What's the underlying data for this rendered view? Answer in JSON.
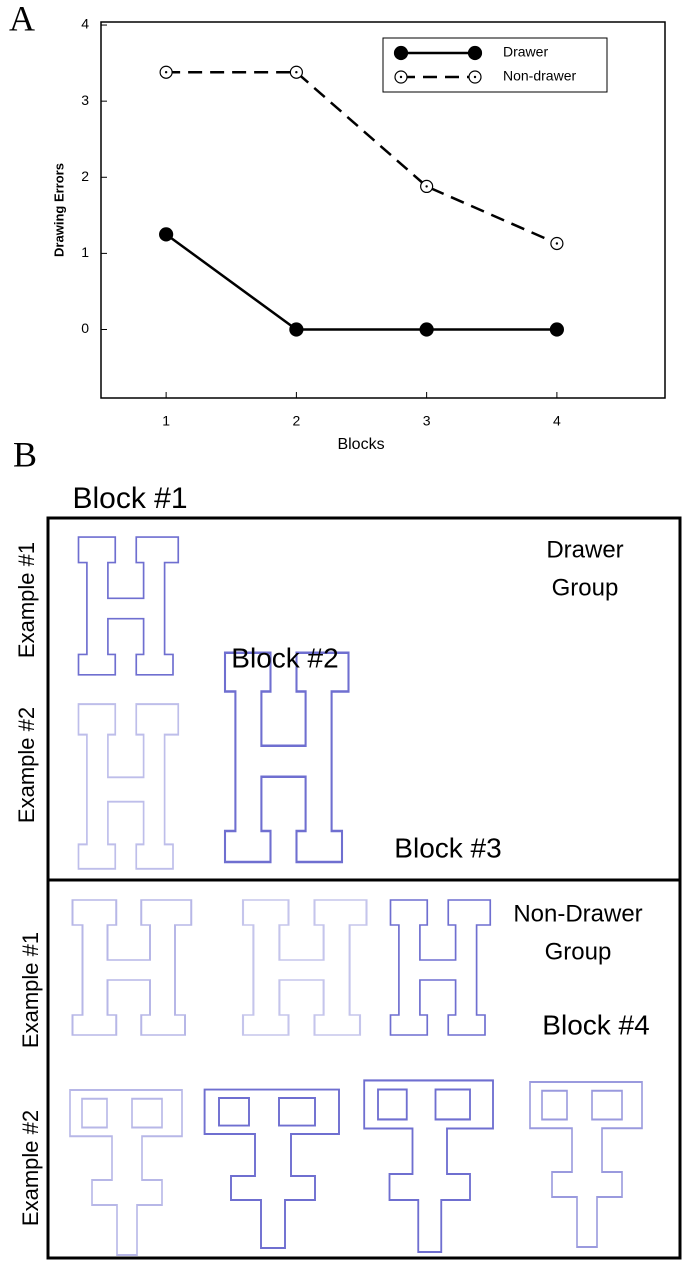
{
  "chart_data": {
    "type": "line",
    "panel_label": "A",
    "x_label": "Blocks",
    "y_label": "Drawing Errors",
    "x": [
      1,
      2,
      3,
      4
    ],
    "xlim": [
      0.5,
      4.83
    ],
    "xticks": [
      1,
      2,
      3,
      4
    ],
    "ylim": [
      -0.9,
      4.04
    ],
    "yticks": [
      0,
      1,
      2,
      3,
      4
    ],
    "legend": "upper right",
    "series": [
      {
        "name": "Drawer",
        "color": "#000000",
        "linestyle": "solid",
        "marker_filled": true,
        "values": [
          1.25,
          0,
          0,
          0
        ]
      },
      {
        "name": "Non-drawer",
        "color": "#000000",
        "linestyle": "dashed",
        "marker_filled": false,
        "values": [
          3.38,
          3.38,
          1.88,
          1.13
        ]
      }
    ]
  },
  "panel_b": {
    "panel_label": "B",
    "block_labels": [
      "Block #1",
      "Block #2",
      "Block #3",
      "Block #4"
    ],
    "groups": [
      [
        "Drawer",
        "Group"
      ],
      [
        "Non-Drawer",
        "Group"
      ]
    ],
    "examples": [
      [
        "Example #1",
        "Example #2"
      ],
      [
        "Example #1",
        "Example #2"
      ]
    ]
  }
}
